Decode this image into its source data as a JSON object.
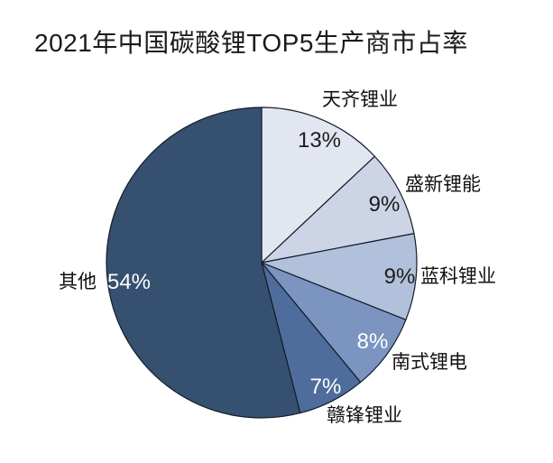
{
  "chart_data": {
    "type": "pie",
    "title": "2021年中国碳酸锂TOP5生产商市占率",
    "direction": "clockwise",
    "start_angle_deg": 0,
    "legend_position": "none",
    "labels_outside": true,
    "background_color": "#ffffff",
    "outline_color": "#141c2b",
    "slices": [
      {
        "label": "天齐锂业",
        "value": 13,
        "display": "13%",
        "color": "#e2e6f0",
        "pct_text_color": "black"
      },
      {
        "label": "盛新锂能",
        "value": 9,
        "display": "9%",
        "color": "#ccd4e5",
        "pct_text_color": "black"
      },
      {
        "label": "蓝科锂业",
        "value": 9,
        "display": "9%",
        "color": "#b2c1db",
        "pct_text_color": "black"
      },
      {
        "label": "南式锂电",
        "value": 8,
        "display": "8%",
        "color": "#7b94c0",
        "pct_text_color": "white"
      },
      {
        "label": "赣锋锂业",
        "value": 7,
        "display": "7%",
        "color": "#4e6d9d",
        "pct_text_color": "white"
      },
      {
        "label": "其他",
        "value": 54,
        "display": "54%",
        "color": "#36506f",
        "pct_text_color": "white"
      }
    ]
  }
}
